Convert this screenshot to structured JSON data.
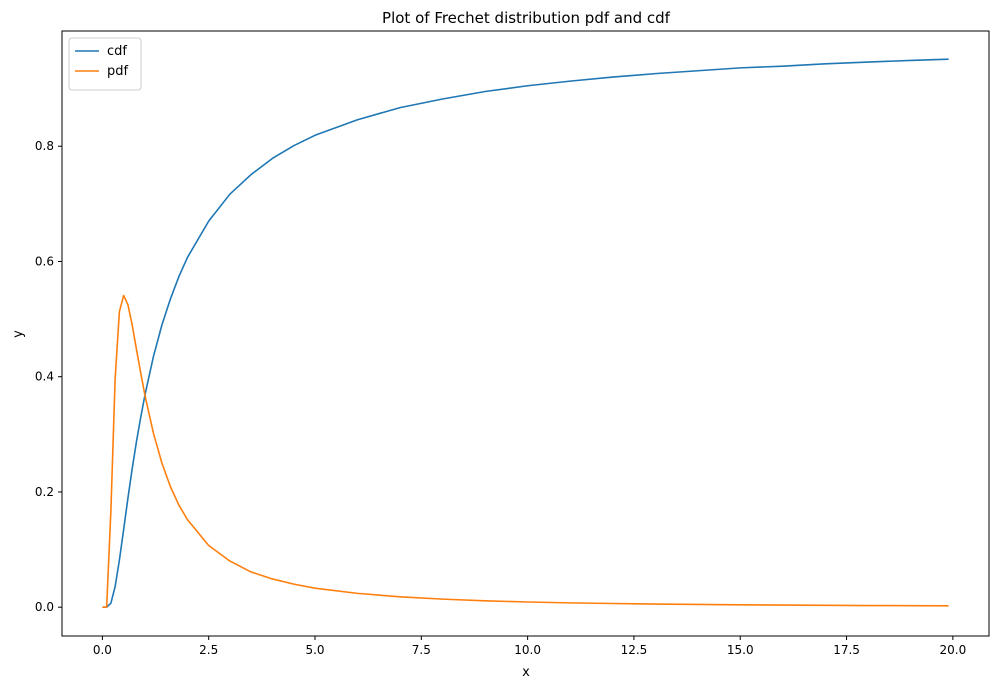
{
  "chart_data": {
    "type": "line",
    "title": "Plot of Frechet distribution pdf and cdf",
    "xlabel": "x",
    "ylabel": "y",
    "xlim": [
      -0.95,
      20.85
    ],
    "ylim": [
      -0.05,
      1.0
    ],
    "xticks": [
      0.0,
      2.5,
      5.0,
      7.5,
      10.0,
      12.5,
      15.0,
      17.5,
      20.0
    ],
    "xtick_labels": [
      "0.0",
      "2.5",
      "5.0",
      "7.5",
      "10.0",
      "12.5",
      "15.0",
      "17.5",
      "20.0"
    ],
    "yticks": [
      0.0,
      0.2,
      0.4,
      0.6,
      0.8
    ],
    "ytick_labels": [
      "0.0",
      "0.2",
      "0.4",
      "0.6",
      "0.8"
    ],
    "grid": false,
    "legend": "top-left",
    "series": [
      {
        "name": "cdf",
        "color": "#1f77b4",
        "x": [
          0.0,
          0.1,
          0.2,
          0.3,
          0.4,
          0.5,
          0.6,
          0.7,
          0.8,
          0.9,
          1.0,
          1.2,
          1.4,
          1.6,
          1.8,
          2.0,
          2.5,
          3.0,
          3.5,
          4.0,
          4.5,
          5.0,
          6.0,
          7.0,
          8.0,
          9.0,
          10.0,
          11.0,
          12.0,
          13.0,
          14.0,
          15.0,
          16.0,
          17.0,
          18.0,
          19.0,
          19.9
        ],
        "y": [
          0.0,
          0.0,
          0.007,
          0.036,
          0.082,
          0.135,
          0.189,
          0.24,
          0.287,
          0.329,
          0.368,
          0.435,
          0.49,
          0.535,
          0.574,
          0.607,
          0.67,
          0.717,
          0.751,
          0.779,
          0.801,
          0.819,
          0.846,
          0.867,
          0.882,
          0.895,
          0.905,
          0.913,
          0.92,
          0.926,
          0.931,
          0.936,
          0.939,
          0.943,
          0.946,
          0.949,
          0.951
        ]
      },
      {
        "name": "pdf",
        "color": "#ff7f0e",
        "x": [
          0.0,
          0.1,
          0.2,
          0.3,
          0.4,
          0.5,
          0.6,
          0.7,
          0.8,
          0.9,
          1.0,
          1.2,
          1.4,
          1.6,
          1.8,
          2.0,
          2.5,
          3.0,
          3.5,
          4.0,
          4.5,
          5.0,
          6.0,
          7.0,
          8.0,
          9.0,
          10.0,
          11.0,
          12.0,
          13.0,
          14.0,
          15.0,
          16.0,
          17.0,
          18.0,
          19.0,
          19.9
        ],
        "y": [
          0.0,
          0.0,
          0.168,
          0.397,
          0.513,
          0.541,
          0.525,
          0.49,
          0.448,
          0.407,
          0.368,
          0.302,
          0.25,
          0.209,
          0.177,
          0.152,
          0.107,
          0.08,
          0.061,
          0.049,
          0.04,
          0.033,
          0.024,
          0.018,
          0.014,
          0.011,
          0.009,
          0.0075,
          0.0064,
          0.0055,
          0.0047,
          0.0042,
          0.0037,
          0.0033,
          0.0029,
          0.0026,
          0.0024
        ]
      }
    ]
  }
}
